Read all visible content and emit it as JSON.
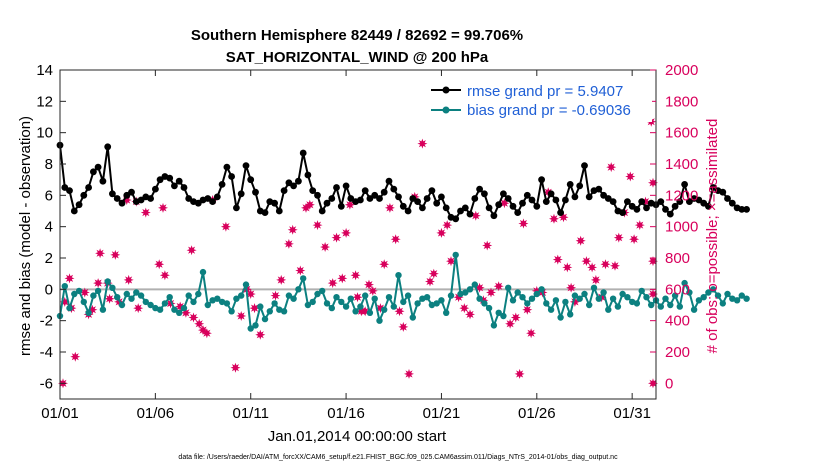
{
  "chart_data": {
    "type": "line",
    "title": "Southern Hemisphere 82449 / 82692 = 99.706%",
    "subtitle": "SAT_HORIZONTAL_WIND @ 200 hPa",
    "xlabel": "Jan.01,2014 00:00:00 start",
    "ylabel": "rmse and bias (model - observation)",
    "y2label": "# of obs: o=possible; ×=assimilated",
    "xlim": [
      0,
      31.25
    ],
    "ylim": [
      -7,
      14
    ],
    "y2lim": [
      -100,
      2000
    ],
    "x_ticks": [
      0,
      5,
      10,
      15,
      20,
      25,
      30
    ],
    "x_tick_labels": [
      "01/01",
      "01/06",
      "01/11",
      "01/16",
      "01/21",
      "01/26",
      "01/31"
    ],
    "y_ticks": [
      -6,
      -4,
      -2,
      0,
      2,
      4,
      6,
      8,
      10,
      12,
      14
    ],
    "y2_ticks": [
      0,
      200,
      400,
      600,
      800,
      1000,
      1200,
      1400,
      1600,
      1800,
      2000
    ],
    "zero_line": 0,
    "colors": {
      "rmse": "#000000",
      "bias": "#0c8080",
      "obs": "#d8005c",
      "zero": "#b0b0b0",
      "legend_text": "#1f5fd6"
    },
    "legend_position": "top-right",
    "footnote": "data file: /Users/raeder/DAI/ATM_forcXX/CAM6_setup/f.e21.FHIST_BGC.f09_025.CAM6assim.011/Diags_NTrS_2014-01/obs_diag_output.nc",
    "series": [
      {
        "name": "rmse grand pr = 5.9407",
        "axis": "left",
        "x_start": 0,
        "x_step": 0.25,
        "values": [
          9.2,
          6.5,
          6.3,
          5.0,
          5.4,
          6.0,
          6.5,
          7.5,
          7.8,
          6.9,
          9.1,
          6.1,
          5.8,
          5.5,
          6.0,
          6.2,
          5.6,
          5.7,
          5.9,
          5.8,
          6.4,
          7.0,
          7.2,
          7.1,
          6.6,
          6.9,
          6.5,
          5.8,
          5.6,
          5.5,
          5.7,
          5.8,
          5.6,
          5.9,
          6.7,
          7.8,
          7.2,
          5.2,
          6.1,
          7.9,
          7.0,
          6.2,
          5.0,
          4.9,
          5.6,
          5.5,
          5.0,
          6.3,
          6.8,
          6.6,
          6.9,
          8.7,
          7.3,
          6.3,
          6.0,
          5.0,
          5.5,
          5.8,
          6.5,
          5.3,
          6.6,
          5.8,
          5.6,
          5.7,
          6.3,
          5.8,
          6.0,
          5.8,
          6.2,
          6.9,
          6.4,
          5.9,
          5.3,
          5.0,
          5.8,
          5.6,
          5.2,
          5.8,
          6.3,
          5.5,
          5.9,
          5.2,
          4.6,
          4.5,
          5.0,
          5.2,
          4.8,
          5.8,
          6.4,
          6.1,
          5.2,
          4.7,
          5.4,
          6.1,
          5.8,
          5.3,
          4.9,
          5.5,
          6.0,
          5.7,
          5.3,
          7.0,
          5.6,
          6.1,
          5.7,
          4.9,
          5.7,
          6.7,
          5.9,
          6.6,
          7.9,
          5.9,
          6.3,
          6.4,
          6.0,
          5.8,
          5.6,
          5.0,
          4.9,
          5.6,
          5.3,
          5.1,
          5.6,
          5.2,
          5.5,
          5.4,
          5.6,
          5.1,
          4.8,
          5.3,
          5.6,
          6.7,
          5.6,
          5.8,
          5.7,
          5.5,
          5.3,
          6.5,
          6.3,
          6.2,
          5.8,
          5.5,
          5.2,
          5.1,
          5.1
        ]
      },
      {
        "name": "bias grand pr = -0.69036",
        "axis": "left",
        "x_start": 0,
        "x_step": 0.25,
        "values": [
          -1.7,
          0.2,
          -1.2,
          -0.3,
          -0.1,
          -0.8,
          -1.5,
          -0.4,
          -0.1,
          -1.3,
          0.5,
          0.1,
          -0.5,
          -1.0,
          -0.3,
          -0.6,
          -0.2,
          -0.4,
          -0.8,
          -1.0,
          -1.2,
          -1.3,
          -0.9,
          -0.5,
          -1.3,
          -1.5,
          -1.2,
          -0.4,
          -0.8,
          -0.3,
          1.1,
          -1.0,
          -0.7,
          -0.6,
          -0.8,
          -0.9,
          -1.4,
          -0.6,
          -0.4,
          0.3,
          -2.5,
          -2.3,
          -1.1,
          -1.9,
          -1.4,
          -0.9,
          -1.3,
          -1.4,
          -0.4,
          -0.6,
          0.0,
          0.7,
          -1.0,
          -0.8,
          -0.3,
          -0.1,
          -0.9,
          -1.2,
          -0.5,
          -0.8,
          -1.1,
          -0.6,
          -1.4,
          -1.1,
          -0.4,
          -1.5,
          -0.6,
          -2.0,
          -1.3,
          -0.5,
          -1.1,
          0.9,
          -0.8,
          -0.4,
          -1.8,
          -0.9,
          -0.6,
          -0.5,
          -1.0,
          -0.9,
          -0.7,
          -1.5,
          -0.4,
          2.2,
          -0.3,
          -0.2,
          0.0,
          0.3,
          -0.6,
          -0.9,
          -1.2,
          -2.3,
          -1.5,
          -1.7,
          0.1,
          -0.7,
          -0.2,
          -0.5,
          -0.9,
          -0.6,
          -0.3,
          0.0,
          -0.9,
          -1.3,
          -0.7,
          -1.8,
          -0.8,
          -1.6,
          -0.4,
          -0.6,
          -0.3,
          -1.0,
          0.1,
          -0.6,
          -0.2,
          -1.3,
          -0.6,
          -1.1,
          -0.3,
          -0.5,
          -0.8,
          -0.9,
          -0.1,
          -0.5,
          -1.0,
          -0.7,
          -1.1,
          -0.6,
          -1.0,
          -0.4,
          -1.1,
          0.4,
          -0.2,
          -1.3,
          -0.7,
          -0.5,
          -0.2,
          0.0,
          -0.4,
          -0.9,
          -0.3,
          -0.6,
          -0.7,
          -0.4,
          -0.6
        ]
      },
      {
        "name": "# of obs",
        "axis": "right",
        "marker": "star",
        "points": [
          [
            0.0,
            0
          ],
          [
            0.25,
            520
          ],
          [
            0.5,
            670
          ],
          [
            0.6,
            480
          ],
          [
            0.8,
            170
          ],
          [
            1.3,
            580
          ],
          [
            1.5,
            440
          ],
          [
            1.7,
            470
          ],
          [
            2.0,
            640
          ],
          [
            2.1,
            830
          ],
          [
            2.5,
            640
          ],
          [
            2.6,
            540
          ],
          [
            2.9,
            820
          ],
          [
            3.1,
            520
          ],
          [
            3.5,
            1170
          ],
          [
            3.6,
            660
          ],
          [
            4.0,
            1160
          ],
          [
            4.1,
            480
          ],
          [
            4.5,
            1090
          ],
          [
            5.2,
            760
          ],
          [
            5.4,
            1120
          ],
          [
            5.5,
            690
          ],
          [
            5.8,
            510
          ],
          [
            6.3,
            490
          ],
          [
            6.6,
            450
          ],
          [
            6.9,
            850
          ],
          [
            7.0,
            420
          ],
          [
            7.3,
            380
          ],
          [
            7.5,
            340
          ],
          [
            7.7,
            320
          ],
          [
            8.0,
            1170
          ],
          [
            8.7,
            1000
          ],
          [
            9.2,
            100
          ],
          [
            9.5,
            430
          ],
          [
            9.8,
            600
          ],
          [
            10.0,
            570
          ],
          [
            10.2,
            480
          ],
          [
            10.5,
            310
          ],
          [
            11.3,
            560
          ],
          [
            11.6,
            660
          ],
          [
            12.0,
            890
          ],
          [
            12.2,
            980
          ],
          [
            12.6,
            720
          ],
          [
            12.9,
            1120
          ],
          [
            13.1,
            1140
          ],
          [
            13.5,
            1010
          ],
          [
            13.9,
            870
          ],
          [
            14.3,
            640
          ],
          [
            14.5,
            930
          ],
          [
            14.8,
            670
          ],
          [
            15.0,
            960
          ],
          [
            15.2,
            1140
          ],
          [
            15.5,
            690
          ],
          [
            15.6,
            550
          ],
          [
            15.8,
            460
          ],
          [
            16.0,
            460
          ],
          [
            16.2,
            630
          ],
          [
            16.4,
            590
          ],
          [
            16.8,
            480
          ],
          [
            17.0,
            760
          ],
          [
            17.3,
            1120
          ],
          [
            17.6,
            920
          ],
          [
            17.8,
            460
          ],
          [
            18.0,
            360
          ],
          [
            18.3,
            60
          ],
          [
            18.6,
            1190
          ],
          [
            19.0,
            1530
          ],
          [
            19.4,
            650
          ],
          [
            19.6,
            700
          ],
          [
            20.0,
            960
          ],
          [
            20.3,
            1010
          ],
          [
            20.5,
            780
          ],
          [
            20.9,
            550
          ],
          [
            21.2,
            480
          ],
          [
            21.5,
            440
          ],
          [
            21.8,
            1070
          ],
          [
            22.0,
            610
          ],
          [
            22.2,
            530
          ],
          [
            22.4,
            880
          ],
          [
            22.6,
            580
          ],
          [
            23.0,
            620
          ],
          [
            23.3,
            1150
          ],
          [
            23.6,
            380
          ],
          [
            23.9,
            420
          ],
          [
            24.1,
            60
          ],
          [
            24.3,
            1020
          ],
          [
            24.5,
            470
          ],
          [
            24.7,
            320
          ],
          [
            25.0,
            590
          ],
          [
            25.3,
            580
          ],
          [
            25.6,
            1220
          ],
          [
            25.9,
            1050
          ],
          [
            26.1,
            790
          ],
          [
            26.4,
            1060
          ],
          [
            26.6,
            740
          ],
          [
            26.8,
            610
          ],
          [
            27.0,
            520
          ],
          [
            27.3,
            910
          ],
          [
            27.6,
            780
          ],
          [
            27.9,
            740
          ],
          [
            28.1,
            660
          ],
          [
            28.4,
            550
          ],
          [
            28.6,
            760
          ],
          [
            28.9,
            1380
          ],
          [
            29.1,
            750
          ],
          [
            29.3,
            930
          ],
          [
            29.6,
            1090
          ],
          [
            29.9,
            1320
          ],
          [
            30.1,
            920
          ],
          [
            30.4,
            1010
          ],
          [
            30.7,
            1160
          ],
          [
            31.0,
            1670
          ],
          [
            31.2,
            1280
          ],
          [
            31.5,
            780
          ],
          [
            31.8,
            570
          ],
          [
            32.0,
            0
          ]
        ]
      }
    ]
  }
}
